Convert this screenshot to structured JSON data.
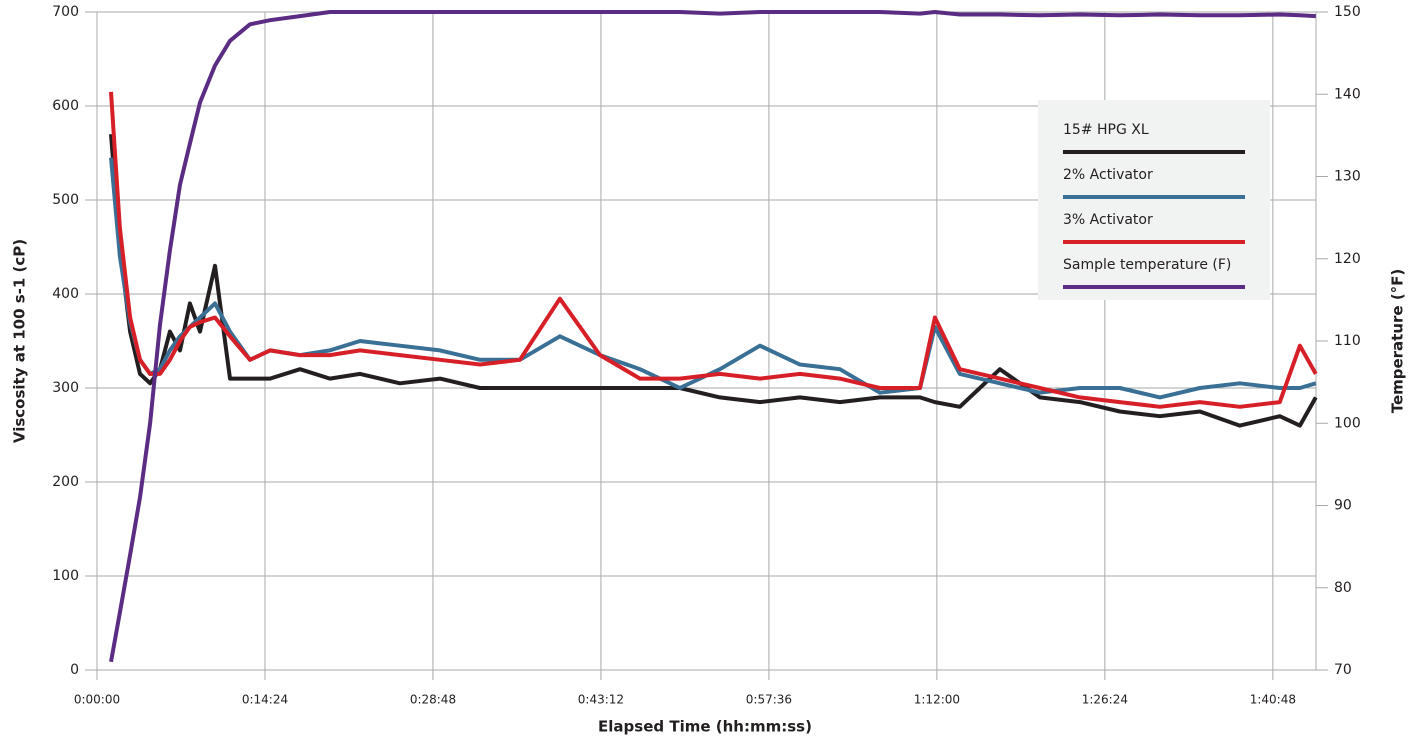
{
  "chart_data": {
    "type": "line",
    "x_label": "Elapsed Time (hh:mm:ss)",
    "y_label": "Viscosity at 100 s-1 (cP)",
    "y2_label": "Temperature (°F)",
    "x": [
      72,
      118,
      170,
      221,
      273,
      324,
      375,
      427,
      478,
      530,
      607,
      684,
      787,
      890,
      1044,
      1198,
      1353,
      1558,
      1764,
      1970,
      2175,
      2381,
      2587,
      2793,
      2998,
      3204,
      3410,
      3615,
      3821,
      4027,
      4233,
      4310,
      4438,
      4644,
      4850,
      5056,
      5261,
      5467,
      5673,
      5878,
      6084,
      6187,
      6269
    ],
    "xlim": [
      0,
      6270
    ],
    "xticks": [
      {
        "value": 0,
        "label": "0:00:00"
      },
      {
        "value": 864,
        "label": "0:14:24"
      },
      {
        "value": 1728,
        "label": "0:28:48"
      },
      {
        "value": 2592,
        "label": "0:43:12"
      },
      {
        "value": 3456,
        "label": "0:57:36"
      },
      {
        "value": 4320,
        "label": "1:12:00"
      },
      {
        "value": 5184,
        "label": "1:26:24"
      },
      {
        "value": 6048,
        "label": "1:40:48"
      }
    ],
    "ylim": [
      0,
      700
    ],
    "yticks": [
      0,
      100,
      200,
      300,
      400,
      500,
      600,
      700
    ],
    "y2lim": [
      70,
      150
    ],
    "y2ticks": [
      70,
      80,
      90,
      100,
      110,
      120,
      130,
      140,
      150
    ],
    "grid": true,
    "legend_position": "upper right",
    "series": [
      {
        "name": "15# HPG XL",
        "color": "#231f20",
        "values": [
          570,
          450,
          360,
          315,
          305,
          320,
          360,
          340,
          390,
          360,
          430,
          310,
          310,
          310,
          320,
          310,
          315,
          305,
          310,
          300,
          300,
          300,
          300,
          300,
          300,
          290,
          285,
          290,
          285,
          290,
          290,
          285,
          280,
          320,
          290,
          285,
          275,
          270,
          275,
          260,
          270,
          260,
          290
        ]
      },
      {
        "name": "2% Activator",
        "color": "#3a6f96",
        "values": [
          545,
          440,
          370,
          330,
          315,
          320,
          340,
          355,
          365,
          375,
          390,
          360,
          330,
          340,
          335,
          340,
          350,
          345,
          340,
          330,
          330,
          355,
          335,
          320,
          300,
          320,
          345,
          325,
          320,
          295,
          300,
          365,
          315,
          305,
          295,
          300,
          300,
          290,
          300,
          305,
          300,
          300,
          305
        ]
      },
      {
        "name": "3% Activator",
        "color": "#d71f27",
        "values": [
          615,
          470,
          375,
          330,
          315,
          315,
          330,
          350,
          365,
          370,
          375,
          355,
          330,
          340,
          335,
          335,
          340,
          335,
          330,
          325,
          330,
          395,
          335,
          310,
          310,
          315,
          310,
          315,
          310,
          300,
          300,
          375,
          320,
          310,
          300,
          290,
          285,
          280,
          285,
          280,
          285,
          345,
          315
        ]
      },
      {
        "name": "Sample temperature (F)",
        "color": "#5b2c83",
        "axis": "y2",
        "values": [
          71,
          77,
          84,
          91,
          100,
          112,
          121,
          129,
          134,
          139,
          143.5,
          146.5,
          148.5,
          149,
          149.5,
          150,
          150,
          150,
          150,
          150,
          150,
          150,
          150,
          150,
          150,
          149.8,
          150,
          150,
          150,
          150,
          149.8,
          150,
          149.7,
          149.7,
          149.6,
          149.7,
          149.6,
          149.7,
          149.6,
          149.6,
          149.7,
          149.6,
          149.5
        ]
      }
    ]
  }
}
